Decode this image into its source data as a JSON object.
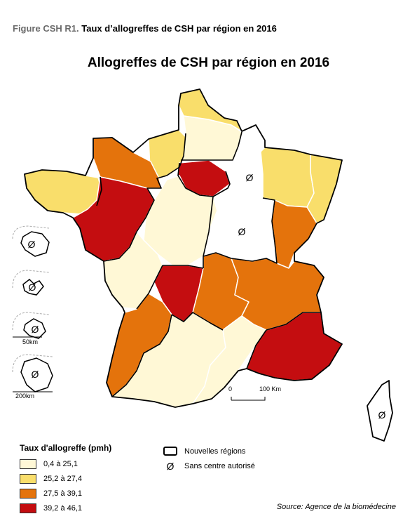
{
  "figure": {
    "number": "Figure CSH R1.",
    "caption": "Taux d’allogreffes de CSH par région en 2016"
  },
  "map_title": "Allogreffes de CSH par région en 2016",
  "colors": {
    "class1": "#fff8d6",
    "class2": "#f9de6b",
    "class3": "#e4730c",
    "class4": "#c40d10",
    "none": "#ffffff"
  },
  "regions": [
    {
      "id": "nord-picardie",
      "class": "class1"
    },
    {
      "id": "nord-tip",
      "class": "class2"
    },
    {
      "id": "haute-normandie",
      "class": "class2"
    },
    {
      "id": "basse-normandie",
      "class": "class3"
    },
    {
      "id": "bretagne",
      "class": "class2"
    },
    {
      "id": "pays-de-la-loire",
      "class": "class4"
    },
    {
      "id": "ile-de-france",
      "class": "class4"
    },
    {
      "id": "champagne",
      "class": "none",
      "no_center": true
    },
    {
      "id": "lorraine",
      "class": "class2"
    },
    {
      "id": "alsace",
      "class": "class2"
    },
    {
      "id": "centre",
      "class": "class1"
    },
    {
      "id": "bourgogne",
      "class": "none",
      "no_center": true
    },
    {
      "id": "franche-comte",
      "class": "class3"
    },
    {
      "id": "poitou-charentes",
      "class": "class1"
    },
    {
      "id": "limousin",
      "class": "class4"
    },
    {
      "id": "auvergne",
      "class": "class3"
    },
    {
      "id": "rhone-alpes",
      "class": "class3"
    },
    {
      "id": "aquitaine",
      "class": "class3"
    },
    {
      "id": "midi-pyrenees",
      "class": "class1"
    },
    {
      "id": "languedoc",
      "class": "class1"
    },
    {
      "id": "paca",
      "class": "class4"
    },
    {
      "id": "corse",
      "class": "none",
      "no_center": true
    },
    {
      "id": "martinique",
      "class": "none",
      "no_center": true
    },
    {
      "id": "guadeloupe",
      "class": "none",
      "no_center": true
    },
    {
      "id": "reunion",
      "class": "none",
      "no_center": true
    },
    {
      "id": "guyane",
      "class": "none",
      "no_center": true
    }
  ],
  "scale_bar": {
    "start": "0",
    "end": "100 Km"
  },
  "inset_scales": [
    "50km",
    "200km"
  ],
  "null_symbol": "Ø",
  "legend": {
    "title": "Taux d'allogreffe (pmh)",
    "items": [
      {
        "label": "0,4 à 25,1",
        "class": "class1"
      },
      {
        "label": "25,2 à 27,4",
        "class": "class2"
      },
      {
        "label": "27,5 à 39,1",
        "class": "class3"
      },
      {
        "label": "39,2 à 46,1",
        "class": "class4"
      }
    ],
    "new_regions_label": "Nouvelles régions",
    "no_center_label": "Sans centre autorisé"
  },
  "source": "Source: Agence de la biomédecine"
}
